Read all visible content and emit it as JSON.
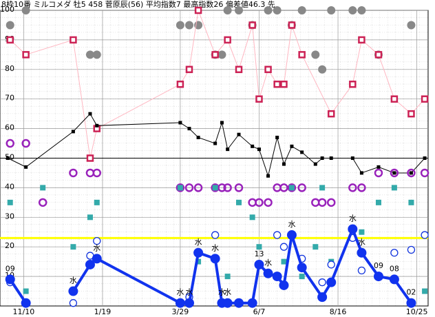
{
  "chart_data": {
    "type": "line",
    "title": "8枠10番 ミルコメダ 牡5 458 菅原辰(56) 平均指数7 最高指数26 偏差値46.3 先",
    "xlim": [
      0,
      380
    ],
    "xticks": [
      {
        "value": 21,
        "label": "11/10"
      },
      {
        "value": 91,
        "label": "1/19"
      },
      {
        "value": 160,
        "label": "3/29"
      },
      {
        "value": 230,
        "label": "6/7"
      },
      {
        "value": 300,
        "label": "8/16"
      },
      {
        "value": 370,
        "label": "10/25"
      }
    ],
    "ylim": [
      0,
      100
    ],
    "yticks": [
      10,
      20,
      30,
      40,
      50,
      60,
      70,
      80,
      90,
      100
    ],
    "grid": true,
    "reference_lines": [
      {
        "value": 23,
        "color": "#ffff00"
      },
      {
        "value": 50,
        "color": "#000000"
      }
    ],
    "series": [
      {
        "kind": "markers",
        "marker": "dot",
        "color": "#888888",
        "x": [
          9,
          23,
          80,
          86,
          160,
          168,
          176,
          191,
          197,
          202,
          212,
          224,
          238,
          246,
          259,
          268,
          280,
          286,
          294,
          313,
          321,
          336,
          365
        ],
        "values": [
          95,
          100,
          85,
          85,
          95,
          95,
          95,
          85,
          85,
          100,
          100,
          95,
          100,
          100,
          95,
          100,
          85,
          80,
          100,
          100,
          100,
          85,
          95
        ]
      },
      {
        "kind": "line",
        "marker": "box",
        "color": "#cc2255",
        "line_color": "#ffb6c1",
        "x": [
          9,
          23,
          65,
          80,
          86,
          160,
          168,
          176,
          191,
          202,
          212,
          224,
          230,
          238,
          246,
          252,
          259,
          268,
          294,
          313,
          321,
          336,
          350,
          365,
          377
        ],
        "values": [
          90,
          85,
          90,
          50,
          60,
          75,
          80,
          100,
          85,
          90,
          80,
          95,
          70,
          80,
          75,
          75,
          95,
          85,
          65,
          75,
          90,
          85,
          70,
          65,
          70
        ]
      },
      {
        "kind": "line",
        "marker": "square",
        "color": "#000000",
        "line_color": "#000000",
        "x": [
          7,
          23,
          65,
          80,
          86,
          160,
          168,
          176,
          191,
          197,
          202,
          212,
          224,
          230,
          238,
          246,
          252,
          259,
          268,
          280,
          286,
          294,
          313,
          321,
          336,
          350,
          365,
          377
        ],
        "values": [
          50,
          47,
          59,
          65,
          61,
          62,
          60,
          57,
          55,
          62,
          53,
          58,
          54,
          53,
          44,
          57,
          48,
          54,
          52,
          48,
          50,
          50,
          50,
          45,
          47,
          45,
          45,
          50
        ]
      },
      {
        "kind": "markers",
        "marker": "ring",
        "color": "#9922bb",
        "x": [
          9,
          23,
          38,
          65,
          80,
          86,
          160,
          168,
          176,
          191,
          197,
          202,
          212,
          224,
          230,
          238,
          246,
          252,
          259,
          268,
          280,
          286,
          294,
          313,
          321,
          336,
          350,
          365,
          377
        ],
        "values": [
          55,
          55,
          35,
          45,
          45,
          45,
          40,
          40,
          40,
          40,
          40,
          40,
          40,
          35,
          35,
          35,
          40,
          40,
          40,
          40,
          35,
          35,
          35,
          40,
          40,
          45,
          45,
          45,
          45
        ]
      },
      {
        "kind": "markers",
        "marker": "square",
        "color": "#33aaaa",
        "x": [
          9,
          23,
          38,
          65,
          80,
          86,
          160,
          176,
          191,
          202,
          212,
          224,
          230,
          252,
          259,
          268,
          280,
          286,
          294,
          321,
          336,
          350,
          365,
          377
        ],
        "values": [
          35,
          5,
          40,
          20,
          30,
          35,
          40,
          15,
          40,
          10,
          35,
          30,
          20,
          15,
          40,
          10,
          20,
          40,
          15,
          25,
          35,
          40,
          35,
          5
        ]
      },
      {
        "kind": "markers",
        "marker": "circle",
        "color": "#1133dd",
        "x": [
          9,
          65,
          80,
          86,
          168,
          191,
          230,
          246,
          252,
          268,
          286,
          294,
          313,
          321,
          350,
          365,
          377
        ],
        "values": [
          8,
          1,
          17,
          22,
          3,
          24,
          14,
          24,
          20,
          16,
          8,
          14,
          23,
          12,
          18,
          19,
          24
        ]
      },
      {
        "kind": "line",
        "marker": "dot",
        "color": "#1133ee",
        "line_color": "#1133ee",
        "thick": true,
        "x": [
          9,
          23,
          null,
          65,
          80,
          86,
          160,
          168,
          176,
          191,
          197,
          202,
          212,
          224,
          230,
          238,
          246,
          252,
          259,
          268,
          286,
          294,
          313,
          321,
          336,
          350,
          365
        ],
        "values": [
          9,
          1,
          null,
          5,
          14,
          16,
          1,
          1,
          18,
          16,
          1,
          1,
          1,
          1,
          14,
          11,
          10,
          7,
          24,
          13,
          3,
          8,
          26,
          18,
          10,
          9,
          1
        ],
        "labels": [
          "09",
          null,
          null,
          "水",
          null,
          "水",
          "水",
          "水",
          "水",
          "水",
          "水",
          "水",
          null,
          null,
          "13",
          "水",
          null,
          null,
          "水",
          null,
          null,
          null,
          "水",
          "水",
          "09",
          "08",
          "02"
        ]
      }
    ]
  }
}
